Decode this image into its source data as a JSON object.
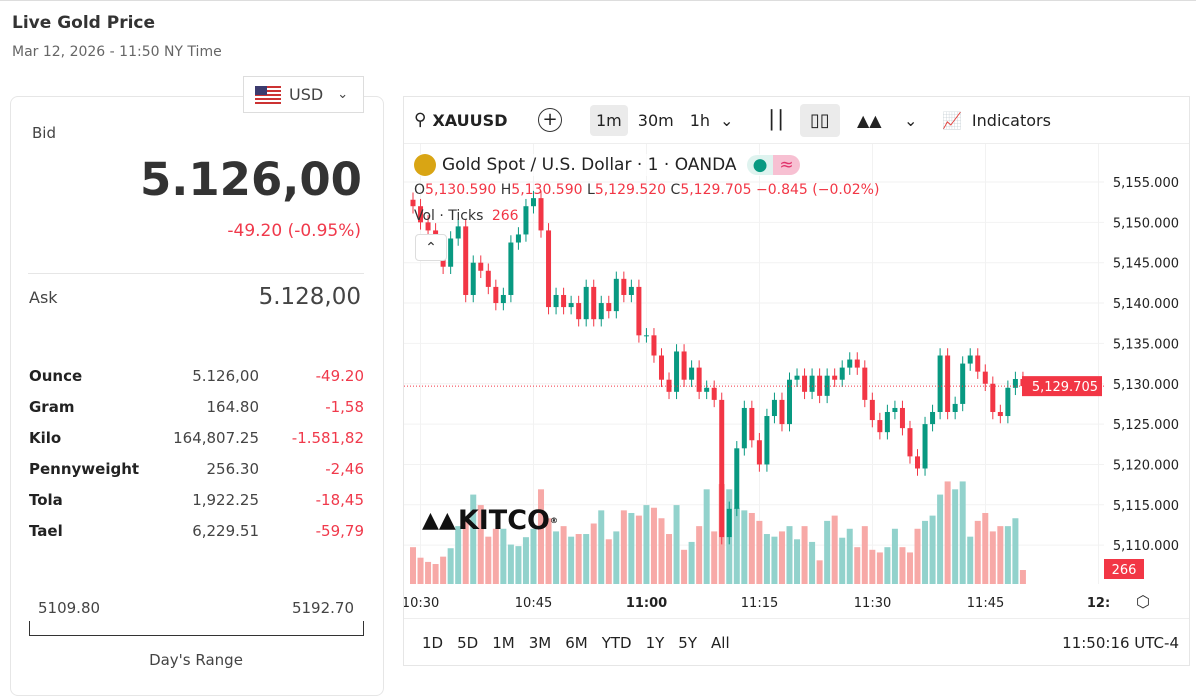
{
  "header": {
    "title": "Live Gold Price",
    "subtitle": "Mar 12, 2026 - 11:50 NY Time"
  },
  "currency": {
    "selected": "USD",
    "icon": "us-flag-icon"
  },
  "quote": {
    "bid_label": "Bid",
    "bid": "5.126,00",
    "change": "-49.20 (-0.95%)",
    "ask_label": "Ask",
    "ask": "5.128,00"
  },
  "units": [
    {
      "name": "Ounce",
      "value": "5.126,00",
      "change": "-49.20"
    },
    {
      "name": "Gram",
      "value": "164.80",
      "change": "-1,58"
    },
    {
      "name": "Kilo",
      "value": "164,807.25",
      "change": "-1.581,82"
    },
    {
      "name": "Pennyweight",
      "value": "256.30",
      "change": "-2,46"
    },
    {
      "name": "Tola",
      "value": "1,922.25",
      "change": "-18,45"
    },
    {
      "name": "Tael",
      "value": "6,229.51",
      "change": "-59,79"
    }
  ],
  "days_range": {
    "low": "5109.80",
    "high": "5192.70",
    "label": "Day's Range"
  },
  "toolbar": {
    "symbol": "XAUUSD",
    "intervals": [
      "1m",
      "30m",
      "1h"
    ],
    "selected_interval": "1m",
    "indicators": "Indicators"
  },
  "legend": {
    "title": "Gold Spot / U.S. Dollar · 1 · OANDA",
    "o_label": "O",
    "o": "5,130.590",
    "h_label": "H",
    "h": "5,130.590",
    "l_label": "L",
    "l": "5,129.520",
    "c_label": "C",
    "c": "5,129.705",
    "chg": "−0.845 (−0.02%)",
    "vol_label": "Vol · Ticks",
    "vol": "266"
  },
  "watermark": "KITCO",
  "ranges": [
    "1D",
    "5D",
    "1M",
    "3M",
    "6M",
    "YTD",
    "1Y",
    "5Y",
    "All"
  ],
  "clock": "11:50:16 UTC-4",
  "colors": {
    "up": "#089981",
    "down": "#f23645",
    "up_vol": "#92d2cc",
    "down_vol": "#f7a9a7"
  },
  "chart_data": {
    "type": "candlestick",
    "price_ticks": [
      "5,155.000",
      "5,150.000",
      "5,145.000",
      "5,140.000",
      "5,135.000",
      "5,130.000",
      "5,125.000",
      "5,120.000",
      "5,115.000",
      "5,110.000"
    ],
    "price_tick_values": [
      5155,
      5150,
      5145,
      5140,
      5135,
      5130,
      5125,
      5120,
      5115,
      5110
    ],
    "time_ticks": [
      "10:30",
      "10:45",
      "11:00",
      "11:15",
      "11:30",
      "11:45",
      "12:"
    ],
    "last_price": "5,129.705",
    "last_price_value": 5129.705,
    "last_volume": "266",
    "start_time": "10:29",
    "close": [
      5152,
      5150,
      5149,
      5147,
      5144.5,
      5148,
      5149.5,
      5141,
      5145,
      5144,
      5142,
      5140,
      5141,
      5147.5,
      5148.5,
      5152,
      5153,
      5149,
      5139.5,
      5141,
      5139.5,
      5140,
      5138,
      5142,
      5138,
      5140,
      5139,
      5143,
      5141,
      5142,
      5136,
      5136,
      5133.5,
      5130.5,
      5129,
      5134,
      5130.5,
      5132,
      5129,
      5129.5,
      5128,
      5111,
      5114.5,
      5122,
      5127,
      5123,
      5120,
      5126,
      5128,
      5125,
      5130.5,
      5131,
      5129,
      5131,
      5128.5,
      5131,
      5130.5,
      5132,
      5133,
      5132,
      5128,
      5125.5,
      5124,
      5126.5,
      5127,
      5124.5,
      5121,
      5119.5,
      5125,
      5126.5,
      5133.5,
      5126.5,
      5127.5,
      5132.5,
      5133.5,
      5131.5,
      5130,
      5126.5,
      5126,
      5129.5,
      5130.59,
      5129.705
    ],
    "volume": [
      700,
      500,
      420,
      380,
      520,
      680,
      1100,
      1200,
      1700,
      1500,
      900,
      1050,
      1050,
      750,
      720,
      890,
      1050,
      1800,
      1250,
      1000,
      1100,
      900,
      950,
      950,
      1150,
      1400,
      850,
      1000,
      1400,
      1350,
      1300,
      1500,
      1450,
      1250,
      950,
      1500,
      650,
      800,
      1100,
      1800,
      1000,
      1900,
      1800,
      1450,
      1400,
      1350,
      1200,
      950,
      900,
      1000,
      1100,
      850,
      1100,
      800,
      450,
      1200,
      1300,
      880,
      1050,
      700,
      1100,
      650,
      600,
      700,
      1050,
      700,
      600,
      1050,
      1200,
      1300,
      1700,
      1950,
      1800,
      1950,
      900,
      1200,
      1350,
      1000,
      1100,
      1100,
      1250,
      266
    ]
  }
}
